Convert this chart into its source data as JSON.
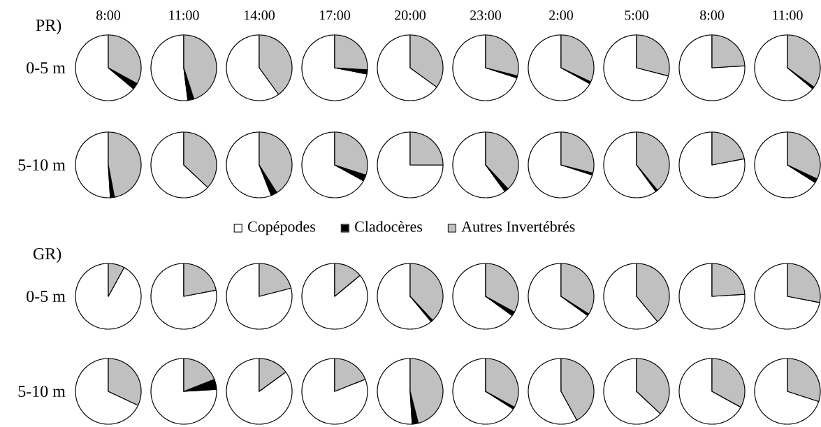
{
  "chart_data": [
    {
      "type": "pie",
      "title": "8:00",
      "ylabel": "0-5 m",
      "annotations": [
        "PR)"
      ],
      "categories": [
        null,
        null,
        null
      ],
      "values": [
        64,
        3,
        33
      ],
      "colors": [
        "#ffffff",
        "#000000",
        "#c0c0c0"
      ]
    },
    {
      "type": "pie",
      "title": "11:00",
      "categories": [
        null,
        null,
        null
      ],
      "values": [
        52,
        3,
        45
      ],
      "colors": [
        "#ffffff",
        "#000000",
        "#c0c0c0"
      ]
    },
    {
      "type": "pie",
      "title": "14:00",
      "categories": [
        null,
        null,
        null
      ],
      "values": [
        60,
        0,
        40
      ],
      "colors": [
        "#ffffff",
        "#000000",
        "#c0c0c0"
      ]
    },
    {
      "type": "pie",
      "title": "17:00",
      "categories": [
        null,
        null,
        null
      ],
      "values": [
        72,
        2,
        26
      ],
      "colors": [
        "#ffffff",
        "#000000",
        "#c0c0c0"
      ]
    },
    {
      "type": "pie",
      "title": "20:00",
      "categories": [
        null,
        null,
        null
      ],
      "values": [
        65,
        0,
        35
      ],
      "colors": [
        "#ffffff",
        "#000000",
        "#c0c0c0"
      ]
    },
    {
      "type": "pie",
      "title": "23:00",
      "categories": [
        null,
        null,
        null
      ],
      "values": [
        70,
        1,
        29
      ],
      "colors": [
        "#ffffff",
        "#000000",
        "#c0c0c0"
      ]
    },
    {
      "type": "pie",
      "title": "2:00",
      "categories": [
        null,
        null,
        null
      ],
      "values": [
        67,
        1,
        32
      ],
      "colors": [
        "#ffffff",
        "#000000",
        "#c0c0c0"
      ]
    },
    {
      "type": "pie",
      "title": "5:00",
      "categories": [
        null,
        null,
        null
      ],
      "values": [
        71,
        0,
        29
      ],
      "colors": [
        "#ffffff",
        "#000000",
        "#c0c0c0"
      ]
    },
    {
      "type": "pie",
      "title": "8:00",
      "categories": [
        null,
        null,
        null
      ],
      "values": [
        76,
        0,
        24
      ],
      "colors": [
        "#ffffff",
        "#000000",
        "#c0c0c0"
      ]
    },
    {
      "type": "pie",
      "title": "11:00",
      "categories": [
        null,
        null,
        null
      ],
      "values": [
        64,
        1,
        35
      ],
      "colors": [
        "#ffffff",
        "#000000",
        "#c0c0c0"
      ]
    },
    {
      "type": "pie",
      "ylabel": "5-10 m",
      "categories": [
        null,
        null,
        null
      ],
      "values": [
        51,
        2,
        47
      ],
      "colors": [
        "#ffffff",
        "#000000",
        "#c0c0c0"
      ]
    },
    {
      "type": "pie",
      "categories": [
        null,
        null,
        null
      ],
      "values": [
        63,
        0,
        37
      ],
      "colors": [
        "#ffffff",
        "#000000",
        "#c0c0c0"
      ]
    },
    {
      "type": "pie",
      "categories": [
        null,
        null,
        null
      ],
      "values": [
        56,
        3,
        41
      ],
      "colors": [
        "#ffffff",
        "#000000",
        "#c0c0c0"
      ]
    },
    {
      "type": "pie",
      "categories": [
        null,
        null,
        null
      ],
      "values": [
        67,
        3,
        30
      ],
      "colors": [
        "#ffffff",
        "#000000",
        "#c0c0c0"
      ]
    },
    {
      "type": "pie",
      "legend": "bottom",
      "categories": [
        "Copépodes",
        "Cladocères",
        "Autres Invertébrés"
      ],
      "values": [
        75,
        0,
        25
      ],
      "colors": [
        "#ffffff",
        "#000000",
        "#c0c0c0"
      ]
    },
    {
      "type": "pie",
      "categories": [
        null,
        null,
        null
      ],
      "values": [
        60,
        2,
        38
      ],
      "colors": [
        "#ffffff",
        "#000000",
        "#c0c0c0"
      ]
    },
    {
      "type": "pie",
      "categories": [
        null,
        null,
        null
      ],
      "values": [
        70,
        1,
        29
      ],
      "colors": [
        "#ffffff",
        "#000000",
        "#c0c0c0"
      ]
    },
    {
      "type": "pie",
      "categories": [
        null,
        null,
        null
      ],
      "values": [
        60,
        1,
        39
      ],
      "colors": [
        "#ffffff",
        "#000000",
        "#c0c0c0"
      ]
    },
    {
      "type": "pie",
      "categories": [
        null,
        null,
        null
      ],
      "values": [
        78,
        0,
        22
      ],
      "colors": [
        "#ffffff",
        "#000000",
        "#c0c0c0"
      ]
    },
    {
      "type": "pie",
      "categories": [
        null,
        null,
        null
      ],
      "values": [
        66,
        2,
        32
      ],
      "colors": [
        "#ffffff",
        "#000000",
        "#c0c0c0"
      ]
    },
    {
      "type": "pie",
      "ylabel": "0-5 m",
      "annotations": [
        "GR)"
      ],
      "categories": [
        null,
        null,
        null
      ],
      "values": [
        92,
        0,
        8
      ],
      "colors": [
        "#ffffff",
        "#000000",
        "#c0c0c0"
      ]
    },
    {
      "type": "pie",
      "categories": [
        null,
        null,
        null
      ],
      "values": [
        78,
        0,
        22
      ],
      "colors": [
        "#ffffff",
        "#000000",
        "#c0c0c0"
      ]
    },
    {
      "type": "pie",
      "categories": [
        null,
        null,
        null
      ],
      "values": [
        79,
        0,
        21
      ],
      "colors": [
        "#ffffff",
        "#000000",
        "#c0c0c0"
      ]
    },
    {
      "type": "pie",
      "categories": [
        null,
        null,
        null
      ],
      "values": [
        86,
        0,
        14
      ],
      "colors": [
        "#ffffff",
        "#000000",
        "#c0c0c0"
      ]
    },
    {
      "type": "pie",
      "categories": [
        null,
        null,
        null
      ],
      "values": [
        61,
        1,
        38
      ],
      "colors": [
        "#ffffff",
        "#000000",
        "#c0c0c0"
      ]
    },
    {
      "type": "pie",
      "categories": [
        null,
        null,
        null
      ],
      "values": [
        65,
        2,
        33
      ],
      "colors": [
        "#ffffff",
        "#000000",
        "#c0c0c0"
      ]
    },
    {
      "type": "pie",
      "categories": [
        null,
        null,
        null
      ],
      "values": [
        65,
        1,
        34
      ],
      "colors": [
        "#ffffff",
        "#000000",
        "#c0c0c0"
      ]
    },
    {
      "type": "pie",
      "categories": [
        null,
        null,
        null
      ],
      "values": [
        61,
        0,
        39
      ],
      "colors": [
        "#ffffff",
        "#000000",
        "#c0c0c0"
      ]
    },
    {
      "type": "pie",
      "categories": [
        null,
        null,
        null
      ],
      "values": [
        76,
        0,
        24
      ],
      "colors": [
        "#ffffff",
        "#000000",
        "#c0c0c0"
      ]
    },
    {
      "type": "pie",
      "categories": [
        null,
        null,
        null
      ],
      "values": [
        72,
        0,
        28
      ],
      "colors": [
        "#ffffff",
        "#000000",
        "#c0c0c0"
      ]
    },
    {
      "type": "pie",
      "ylabel": "5-10 m",
      "categories": [
        null,
        null,
        null
      ],
      "values": [
        68,
        0,
        32
      ],
      "colors": [
        "#ffffff",
        "#000000",
        "#c0c0c0"
      ]
    },
    {
      "type": "pie",
      "categories": [
        null,
        null,
        null
      ],
      "values": [
        76,
        5,
        19
      ],
      "colors": [
        "#ffffff",
        "#000000",
        "#c0c0c0"
      ]
    },
    {
      "type": "pie",
      "categories": [
        null,
        null,
        null
      ],
      "values": [
        85,
        0,
        15
      ],
      "colors": [
        "#ffffff",
        "#000000",
        "#c0c0c0"
      ]
    },
    {
      "type": "pie",
      "categories": [
        null,
        null,
        null
      ],
      "values": [
        81,
        0,
        19
      ],
      "colors": [
        "#ffffff",
        "#000000",
        "#c0c0c0"
      ]
    },
    {
      "type": "pie",
      "categories": [
        null,
        null,
        null
      ],
      "values": [
        51,
        3,
        46
      ],
      "colors": [
        "#ffffff",
        "#000000",
        "#c0c0c0"
      ]
    },
    {
      "type": "pie",
      "categories": [
        null,
        null,
        null
      ],
      "values": [
        66,
        1,
        33
      ],
      "colors": [
        "#ffffff",
        "#000000",
        "#c0c0c0"
      ]
    },
    {
      "type": "pie",
      "categories": [
        null,
        null,
        null
      ],
      "values": [
        58,
        0,
        42
      ],
      "colors": [
        "#ffffff",
        "#000000",
        "#c0c0c0"
      ]
    },
    {
      "type": "pie",
      "categories": [
        null,
        null,
        null
      ],
      "values": [
        63,
        0,
        37
      ],
      "colors": [
        "#ffffff",
        "#000000",
        "#c0c0c0"
      ]
    },
    {
      "type": "pie",
      "categories": [
        null,
        null,
        null
      ],
      "values": [
        67,
        0,
        33
      ],
      "colors": [
        "#ffffff",
        "#000000",
        "#c0c0c0"
      ]
    },
    {
      "type": "pie",
      "categories": [
        null,
        null,
        null
      ],
      "values": [
        70,
        0,
        30
      ],
      "colors": [
        "#ffffff",
        "#000000",
        "#c0c0c0"
      ]
    }
  ]
}
